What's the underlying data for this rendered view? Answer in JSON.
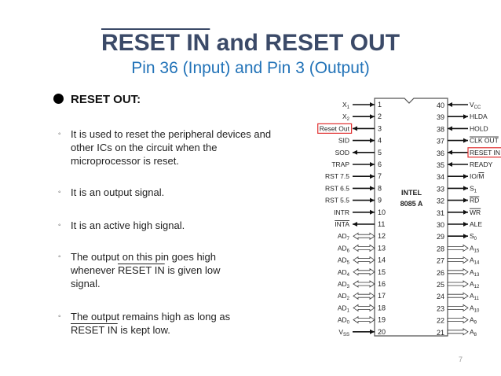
{
  "title": {
    "overlined": "RESET IN",
    "rest": " and RESET OUT"
  },
  "subtitle": "Pin 36 (Input) and Pin 3 (Output)",
  "heading": "RESET OUT:",
  "bullets": [
    {
      "text": "It is used to reset the peripheral devices and other ICs on the circuit when the microprocessor is reset."
    },
    {
      "text": "It is an output signal."
    },
    {
      "text": "It is an active high signal."
    },
    {
      "pre": "The output on this pin goes high whenever ",
      "over": "RESET IN",
      "post": " is given low signal."
    },
    {
      "pre": "The output remains high as long as ",
      "over": "RESET IN",
      "post": " is kept low."
    }
  ],
  "page_number": "7",
  "chip": {
    "line1": "INTEL",
    "line2": "8085 A",
    "highlight_color": "#e03030",
    "left_pins": [
      {
        "n": "1",
        "label": "X",
        "sub": "1",
        "dir": "in"
      },
      {
        "n": "2",
        "label": "X",
        "sub": "2",
        "dir": "in"
      },
      {
        "n": "3",
        "label": "Reset Out",
        "dir": "out",
        "highlight": true
      },
      {
        "n": "4",
        "label": "SID",
        "dir": "in"
      },
      {
        "n": "5",
        "label": "SOD",
        "dir": "out"
      },
      {
        "n": "6",
        "label": "TRAP",
        "dir": "in"
      },
      {
        "n": "7",
        "label": "RST 7.5",
        "dir": "in"
      },
      {
        "n": "8",
        "label": "RST 6.5",
        "dir": "in"
      },
      {
        "n": "9",
        "label": "RST 5.5",
        "dir": "in"
      },
      {
        "n": "10",
        "label": "INTR",
        "dir": "in"
      },
      {
        "n": "11",
        "over": "INTA",
        "dir": "out"
      },
      {
        "n": "12",
        "label": "AD",
        "sub": "7",
        "dir": "bi"
      },
      {
        "n": "13",
        "label": "AD",
        "sub": "6",
        "dir": "bi"
      },
      {
        "n": "14",
        "label": "AD",
        "sub": "5",
        "dir": "bi"
      },
      {
        "n": "15",
        "label": "AD",
        "sub": "4",
        "dir": "bi"
      },
      {
        "n": "16",
        "label": "AD",
        "sub": "3",
        "dir": "bi"
      },
      {
        "n": "17",
        "label": "AD",
        "sub": "2",
        "dir": "bi"
      },
      {
        "n": "18",
        "label": "AD",
        "sub": "1",
        "dir": "bi"
      },
      {
        "n": "19",
        "label": "AD",
        "sub": "0",
        "dir": "bi"
      },
      {
        "n": "20",
        "label": "V",
        "sub": "SS",
        "dir": "in"
      }
    ],
    "right_pins": [
      {
        "n": "40",
        "label": "V",
        "sub": "CC",
        "dir": "in"
      },
      {
        "n": "39",
        "label": "HLDA",
        "dir": "out"
      },
      {
        "n": "38",
        "label": "HOLD",
        "dir": "in"
      },
      {
        "n": "37",
        "over": "CLK OUT",
        "dir": "out"
      },
      {
        "n": "36",
        "label": "RESET IN",
        "dir": "in",
        "highlight": true
      },
      {
        "n": "35",
        "label": "READY",
        "dir": "in"
      },
      {
        "n": "34",
        "label": "IO/",
        "over": "M",
        "dir": "out"
      },
      {
        "n": "33",
        "label": "S",
        "sub": "1",
        "dir": "out"
      },
      {
        "n": "32",
        "over": "RD",
        "dir": "out"
      },
      {
        "n": "31",
        "over": "WR",
        "dir": "out"
      },
      {
        "n": "30",
        "label": "ALE",
        "dir": "out"
      },
      {
        "n": "29",
        "label": "S",
        "sub": "0",
        "dir": "out"
      },
      {
        "n": "28",
        "label": "A",
        "sub": "15",
        "dir": "bus"
      },
      {
        "n": "27",
        "label": "A",
        "sub": "14",
        "dir": "bus"
      },
      {
        "n": "26",
        "label": "A",
        "sub": "13",
        "dir": "bus"
      },
      {
        "n": "25",
        "label": "A",
        "sub": "12",
        "dir": "bus"
      },
      {
        "n": "24",
        "label": "A",
        "sub": "11",
        "dir": "bus"
      },
      {
        "n": "23",
        "label": "A",
        "sub": "10",
        "dir": "bus"
      },
      {
        "n": "22",
        "label": "A",
        "sub": "9",
        "dir": "bus"
      },
      {
        "n": "21",
        "label": "A",
        "sub": "8",
        "dir": "bus"
      }
    ]
  }
}
